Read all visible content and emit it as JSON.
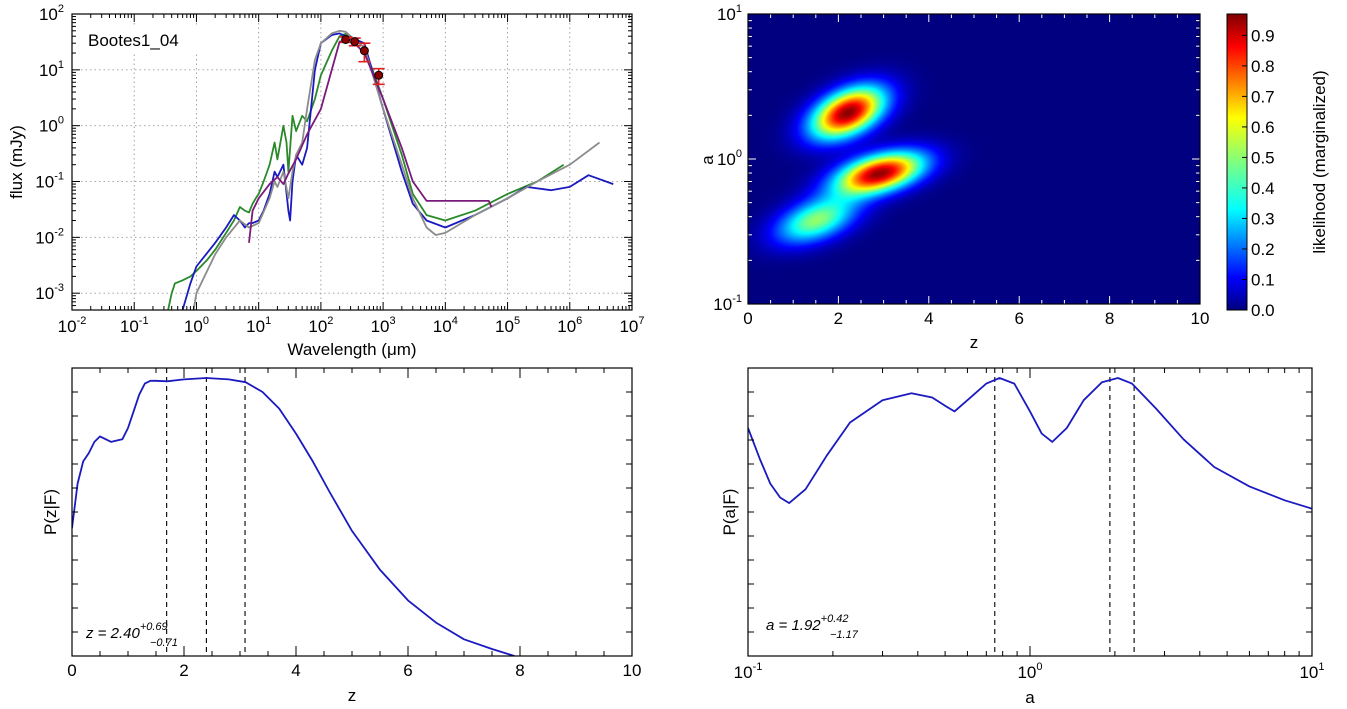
{
  "colors": {
    "blue_curve": "#1a1abf",
    "green": "#2a8a2a",
    "grey": "#8c8c8c",
    "purple": "#7a1a7a",
    "data_point": "#8b0000",
    "errorbar": "#e02020",
    "colormap": "jet"
  },
  "chart_data": [
    {
      "id": "sed",
      "type": "line",
      "source_label": "Bootes1_04",
      "xlabel": "Wavelength (μm)",
      "ylabel": "flux (mJy)",
      "xscale": "log",
      "yscale": "log",
      "xlim": [
        0.01,
        10000000
      ],
      "ylim": [
        0.0005,
        100
      ],
      "xtick_labels": [
        {
          "base": "10",
          "exp": "-2"
        },
        {
          "base": "10",
          "exp": "-1"
        },
        {
          "base": "10",
          "exp": "0"
        },
        {
          "base": "10",
          "exp": "1"
        },
        {
          "base": "10",
          "exp": "2"
        },
        {
          "base": "10",
          "exp": "3"
        },
        {
          "base": "10",
          "exp": "4"
        },
        {
          "base": "10",
          "exp": "5"
        },
        {
          "base": "10",
          "exp": "6"
        },
        {
          "base": "10",
          "exp": "7"
        }
      ],
      "ytick_labels": [
        {
          "base": "10",
          "exp": "-3"
        },
        {
          "base": "10",
          "exp": "-2"
        },
        {
          "base": "10",
          "exp": "-1"
        },
        {
          "base": "10",
          "exp": "0"
        },
        {
          "base": "10",
          "exp": "1"
        },
        {
          "base": "10",
          "exp": "2"
        }
      ],
      "grid": true,
      "series": [
        {
          "color": "#2a8a2a",
          "points": [
            [
              0.35,
              0.0005
            ],
            [
              0.4,
              0.001
            ],
            [
              0.45,
              0.0015
            ],
            [
              0.6,
              0.0017
            ],
            [
              0.8,
              0.002
            ],
            [
              1,
              0.0025
            ],
            [
              1.5,
              0.004
            ],
            [
              2,
              0.006
            ],
            [
              3,
              0.012
            ],
            [
              4,
              0.02
            ],
            [
              5,
              0.035
            ],
            [
              6,
              0.03
            ],
            [
              7,
              0.028
            ],
            [
              8,
              0.04
            ],
            [
              9,
              0.05
            ],
            [
              10,
              0.06
            ],
            [
              12,
              0.1
            ],
            [
              15,
              0.2
            ],
            [
              18,
              0.5
            ],
            [
              20,
              0.25
            ],
            [
              25,
              1.0
            ],
            [
              28,
              0.5
            ],
            [
              30,
              0.15
            ],
            [
              35,
              1.5
            ],
            [
              40,
              0.8
            ],
            [
              50,
              1.5
            ],
            [
              60,
              1.2
            ],
            [
              80,
              3
            ],
            [
              100,
              8
            ],
            [
              150,
              22
            ],
            [
              200,
              40
            ],
            [
              250,
              44
            ],
            [
              300,
              40
            ],
            [
              500,
              25
            ],
            [
              1000,
              3
            ],
            [
              2000,
              0.3
            ],
            [
              3000,
              0.06
            ],
            [
              5000,
              0.025
            ],
            [
              10000,
              0.02
            ],
            [
              30000,
              0.03
            ],
            [
              100000,
              0.06
            ],
            [
              300000,
              0.1
            ],
            [
              800000,
              0.2
            ]
          ]
        },
        {
          "color": "#1a1abf",
          "points": [
            [
              0.6,
              0.0005
            ],
            [
              0.8,
              0.0015
            ],
            [
              1,
              0.003
            ],
            [
              2,
              0.008
            ],
            [
              3,
              0.015
            ],
            [
              4,
              0.025
            ],
            [
              5,
              0.02
            ],
            [
              6,
              0.015
            ],
            [
              7,
              0.018
            ],
            [
              8,
              0.018
            ],
            [
              10,
              0.02
            ],
            [
              12,
              0.03
            ],
            [
              15,
              0.06
            ],
            [
              18,
              0.15
            ],
            [
              20,
              0.12
            ],
            [
              25,
              0.2
            ],
            [
              30,
              0.03
            ],
            [
              32,
              0.02
            ],
            [
              35,
              0.1
            ],
            [
              40,
              0.3
            ],
            [
              50,
              0.2
            ],
            [
              60,
              0.4
            ],
            [
              80,
              10
            ],
            [
              100,
              30
            ],
            [
              150,
              42
            ],
            [
              200,
              45
            ],
            [
              250,
              40
            ],
            [
              300,
              38
            ],
            [
              500,
              30
            ],
            [
              1000,
              2
            ],
            [
              2000,
              0.15
            ],
            [
              3000,
              0.04
            ],
            [
              5000,
              0.02
            ],
            [
              10000,
              0.015
            ],
            [
              30000,
              0.025
            ],
            [
              100000,
              0.05
            ],
            [
              200000,
              0.08
            ],
            [
              500000,
              0.07
            ],
            [
              1000000,
              0.08
            ],
            [
              2000000,
              0.13
            ],
            [
              5000000,
              0.09
            ]
          ]
        },
        {
          "color": "#8c8c8c",
          "points": [
            [
              0.9,
              0.0005
            ],
            [
              1,
              0.001
            ],
            [
              2,
              0.005
            ],
            [
              3,
              0.01
            ],
            [
              5,
              0.02
            ],
            [
              7,
              0.015
            ],
            [
              10,
              0.018
            ],
            [
              15,
              0.05
            ],
            [
              18,
              0.1
            ],
            [
              20,
              0.08
            ],
            [
              25,
              0.15
            ],
            [
              30,
              0.05
            ],
            [
              35,
              0.15
            ],
            [
              40,
              0.3
            ],
            [
              50,
              0.5
            ],
            [
              60,
              2
            ],
            [
              80,
              15
            ],
            [
              100,
              30
            ],
            [
              150,
              45
            ],
            [
              200,
              50
            ],
            [
              250,
              48
            ],
            [
              300,
              40
            ],
            [
              500,
              25
            ],
            [
              1000,
              2
            ],
            [
              2000,
              0.2
            ],
            [
              3000,
              0.05
            ],
            [
              5000,
              0.015
            ],
            [
              7000,
              0.011
            ],
            [
              10000,
              0.012
            ],
            [
              30000,
              0.025
            ],
            [
              100000,
              0.05
            ],
            [
              300000,
              0.1
            ],
            [
              1000000,
              0.2
            ],
            [
              3000000,
              0.5
            ]
          ]
        },
        {
          "color": "#7a1a7a",
          "points": [
            [
              7,
              0.008
            ],
            [
              8,
              0.03
            ],
            [
              10,
              0.05
            ],
            [
              15,
              0.09
            ],
            [
              20,
              0.12
            ],
            [
              25,
              0.09
            ],
            [
              30,
              0.14
            ],
            [
              40,
              0.25
            ],
            [
              60,
              0.7
            ],
            [
              100,
              2
            ],
            [
              150,
              10
            ],
            [
              200,
              32
            ],
            [
              300,
              35
            ],
            [
              500,
              20
            ],
            [
              1000,
              3
            ],
            [
              2000,
              0.4
            ],
            [
              3000,
              0.1
            ],
            [
              5000,
              0.045
            ],
            [
              10000,
              0.045
            ],
            [
              30000,
              0.045
            ],
            [
              50000,
              0.045
            ],
            [
              55000,
              0.035
            ]
          ]
        }
      ],
      "observations": [
        {
          "x": 250,
          "y": 35,
          "yerr": 4
        },
        {
          "x": 350,
          "y": 32,
          "yerr": 5
        },
        {
          "x": 500,
          "y": 22,
          "yerr": 8
        },
        {
          "x": 850,
          "y": 8,
          "yerr": 2.5
        }
      ]
    },
    {
      "id": "likelihood",
      "type": "heatmap",
      "xlabel": "z",
      "ylabel": "a",
      "xlim": [
        0,
        10
      ],
      "ylim": [
        0.1,
        10
      ],
      "yscale": "log",
      "xtick_labels": [
        "0",
        "2",
        "4",
        "6",
        "8",
        "10"
      ],
      "ytick_labels": [
        {
          "base": "10",
          "exp": "-1"
        },
        {
          "base": "10",
          "exp": "0"
        },
        {
          "base": "10",
          "exp": "1"
        }
      ],
      "colorbar": {
        "label": "likelihood (marginalized)",
        "range": [
          0,
          0.97
        ],
        "tick_labels": [
          "0.0",
          "0.1",
          "0.2",
          "0.3",
          "0.4",
          "0.5",
          "0.6",
          "0.7",
          "0.8",
          "0.9"
        ]
      },
      "blobs": [
        {
          "z": 2.2,
          "a": 2.1,
          "peak": 0.96,
          "sigma_z": 0.5,
          "sigma_loga": 0.11
        },
        {
          "z": 2.9,
          "a": 0.8,
          "peak": 0.95,
          "sigma_z": 0.6,
          "sigma_loga": 0.09
        },
        {
          "z": 1.5,
          "a": 0.38,
          "peak": 0.5,
          "sigma_z": 0.55,
          "sigma_loga": 0.1
        }
      ]
    },
    {
      "id": "pz",
      "type": "line",
      "xlabel": "z",
      "ylabel": "P(z|F)",
      "xlim": [
        0,
        10
      ],
      "xtick_labels": [
        "0",
        "2",
        "4",
        "6",
        "8",
        "10"
      ],
      "annotation": {
        "var": "z",
        "value": "2.40",
        "plus": "+0.69",
        "minus": "−0.71"
      },
      "vlines": [
        1.69,
        2.4,
        3.09
      ],
      "x": [
        0,
        0.1,
        0.2,
        0.3,
        0.4,
        0.5,
        0.6,
        0.7,
        0.8,
        0.9,
        1.0,
        1.1,
        1.2,
        1.3,
        1.4,
        1.5,
        1.7,
        2.0,
        2.4,
        2.8,
        3.1,
        3.4,
        3.7,
        4.0,
        4.3,
        4.6,
        5.0,
        5.5,
        6.0,
        6.5,
        7.0,
        7.5,
        7.9
      ],
      "y": [
        0.46,
        0.62,
        0.7,
        0.73,
        0.77,
        0.79,
        0.78,
        0.77,
        0.775,
        0.78,
        0.82,
        0.88,
        0.94,
        0.98,
        0.99,
        0.99,
        0.988,
        0.995,
        1.0,
        0.995,
        0.985,
        0.95,
        0.89,
        0.8,
        0.7,
        0.59,
        0.45,
        0.31,
        0.2,
        0.12,
        0.06,
        0.025,
        0.0
      ]
    },
    {
      "id": "pa",
      "type": "line",
      "xlabel": "a",
      "ylabel": "P(a|F)",
      "xscale": "log",
      "xlim": [
        0.1,
        10
      ],
      "xtick_labels": [
        {
          "base": "10",
          "exp": "-1"
        },
        {
          "base": "10",
          "exp": "0"
        },
        {
          "base": "10",
          "exp": "1"
        }
      ],
      "annotation": {
        "var": "a",
        "value": "1.92",
        "plus": "+0.42",
        "minus": "−1.17"
      },
      "vlines": [
        0.75,
        1.92,
        2.34
      ],
      "x": [
        0.1,
        0.11,
        0.12,
        0.13,
        0.14,
        0.16,
        0.19,
        0.23,
        0.3,
        0.38,
        0.45,
        0.5,
        0.54,
        0.6,
        0.7,
        0.78,
        0.88,
        1.0,
        1.1,
        1.2,
        1.35,
        1.55,
        1.8,
        2.05,
        2.3,
        2.8,
        3.5,
        4.5,
        6.0,
        8.0,
        10.0
      ],
      "y": [
        0.82,
        0.71,
        0.62,
        0.57,
        0.55,
        0.6,
        0.72,
        0.84,
        0.92,
        0.945,
        0.93,
        0.9,
        0.88,
        0.92,
        0.98,
        1.0,
        0.98,
        0.88,
        0.8,
        0.77,
        0.82,
        0.92,
        0.985,
        1.0,
        0.98,
        0.89,
        0.78,
        0.68,
        0.61,
        0.56,
        0.53
      ]
    }
  ]
}
